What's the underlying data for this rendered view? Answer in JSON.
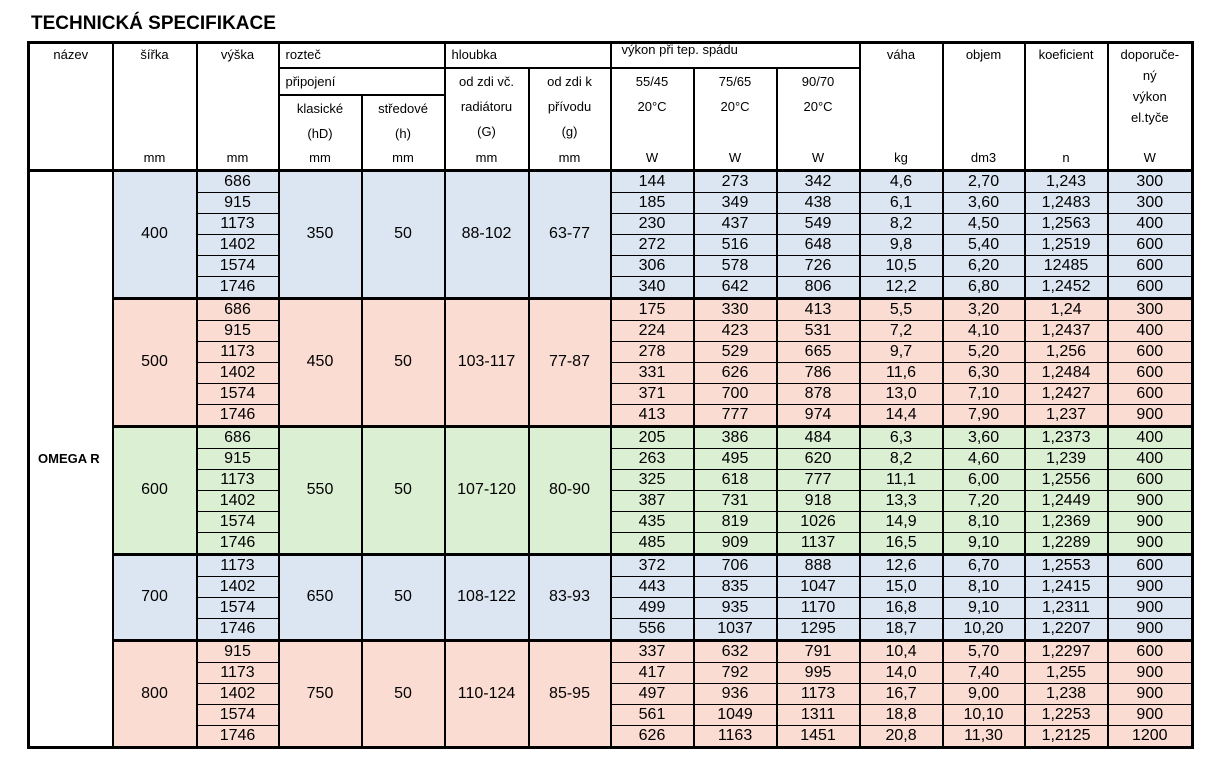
{
  "title": "TECHNICKÁ SPECIFIKACE",
  "header": {
    "nazev": "název",
    "sirka": "šířka",
    "vyska": "výška",
    "roztec": "rozteč",
    "pripojeni": "připojení",
    "klasicke": [
      "klasické",
      "(hD)"
    ],
    "stredove": [
      "středové",
      "(h)"
    ],
    "hloubka": "hloubka",
    "od_zdi_G": [
      "od zdi  vč.",
      "radiátoru",
      "(G)"
    ],
    "od_zdi_g": [
      "od zdi  k",
      "přívodu",
      "(g)"
    ],
    "vykon": "výkon při tep. spádu",
    "spad": [
      [
        "55/45",
        "20°C"
      ],
      [
        "75/65",
        "20°C"
      ],
      [
        "90/70",
        "20°C"
      ]
    ],
    "vaha": "váha",
    "objem": "objem",
    "koeficient": "koeficient",
    "doporuceny": [
      "doporuče-",
      "ný",
      "výkon",
      "el.tyče"
    ],
    "units": [
      "mm",
      "mm",
      "mm",
      "mm",
      "mm",
      "mm",
      "W",
      "W",
      "W",
      "kg",
      "dm3",
      "n",
      "W"
    ]
  },
  "table": {
    "model": "OMEGA R",
    "groups": [
      {
        "sirka": "400",
        "klasicke": "350",
        "stredove": "50",
        "G": "88-102",
        "g": "63-77",
        "color": "#dce6f2",
        "rows": [
          [
            "686",
            "144",
            "273",
            "342",
            "4,6",
            "2,70",
            "1,243",
            "300"
          ],
          [
            "915",
            "185",
            "349",
            "438",
            "6,1",
            "3,60",
            "1,2483",
            "300"
          ],
          [
            "1173",
            "230",
            "437",
            "549",
            "8,2",
            "4,50",
            "1,2563",
            "400"
          ],
          [
            "1402",
            "272",
            "516",
            "648",
            "9,8",
            "5,40",
            "1,2519",
            "600"
          ],
          [
            "1574",
            "306",
            "578",
            "726",
            "10,5",
            "6,20",
            "12485",
            "600"
          ],
          [
            "1746",
            "340",
            "642",
            "806",
            "12,2",
            "6,80",
            "1,2452",
            "600"
          ]
        ]
      },
      {
        "sirka": "500",
        "klasicke": "450",
        "stredove": "50",
        "G": "103-117",
        "g": "77-87",
        "color": "#fadcd2",
        "rows": [
          [
            "686",
            "175",
            "330",
            "413",
            "5,5",
            "3,20",
            "1,24",
            "300"
          ],
          [
            "915",
            "224",
            "423",
            "531",
            "7,2",
            "4,10",
            "1,2437",
            "400"
          ],
          [
            "1173",
            "278",
            "529",
            "665",
            "9,7",
            "5,20",
            "1,256",
            "600"
          ],
          [
            "1402",
            "331",
            "626",
            "786",
            "11,6",
            "6,30",
            "1,2484",
            "600"
          ],
          [
            "1574",
            "371",
            "700",
            "878",
            "13,0",
            "7,10",
            "1,2427",
            "600"
          ],
          [
            "1746",
            "413",
            "777",
            "974",
            "14,4",
            "7,90",
            "1,237",
            "900"
          ]
        ]
      },
      {
        "sirka": "600",
        "klasicke": "550",
        "stredove": "50",
        "G": "107-120",
        "g": "80-90",
        "color": "#dbefd3",
        "rows": [
          [
            "686",
            "205",
            "386",
            "484",
            "6,3",
            "3,60",
            "1,2373",
            "400"
          ],
          [
            "915",
            "263",
            "495",
            "620",
            "8,2",
            "4,60",
            "1,239",
            "400"
          ],
          [
            "1173",
            "325",
            "618",
            "777",
            "11,1",
            "6,00",
            "1,2556",
            "600"
          ],
          [
            "1402",
            "387",
            "731",
            "918",
            "13,3",
            "7,20",
            "1,2449",
            "900"
          ],
          [
            "1574",
            "435",
            "819",
            "1026",
            "14,9",
            "8,10",
            "1,2369",
            "900"
          ],
          [
            "1746",
            "485",
            "909",
            "1137",
            "16,5",
            "9,10",
            "1,2289",
            "900"
          ]
        ]
      },
      {
        "sirka": "700",
        "klasicke": "650",
        "stredove": "50",
        "G": "108-122",
        "g": "83-93",
        "color": "#dce6f2",
        "rows": [
          [
            "1173",
            "372",
            "706",
            "888",
            "12,6",
            "6,70",
            "1,2553",
            "600"
          ],
          [
            "1402",
            "443",
            "835",
            "1047",
            "15,0",
            "8,10",
            "1,2415",
            "900"
          ],
          [
            "1574",
            "499",
            "935",
            "1170",
            "16,8",
            "9,10",
            "1,2311",
            "900"
          ],
          [
            "1746",
            "556",
            "1037",
            "1295",
            "18,7",
            "10,20",
            "1,2207",
            "900"
          ]
        ]
      },
      {
        "sirka": "800",
        "klasicke": "750",
        "stredove": "50",
        "G": "110-124",
        "g": "85-95",
        "color": "#fadcd2",
        "rows": [
          [
            "915",
            "337",
            "632",
            "791",
            "10,4",
            "5,70",
            "1,2297",
            "600"
          ],
          [
            "1173",
            "417",
            "792",
            "995",
            "14,0",
            "7,40",
            "1,255",
            "900"
          ],
          [
            "1402",
            "497",
            "936",
            "1173",
            "16,7",
            "9,00",
            "1,238",
            "900"
          ],
          [
            "1574",
            "561",
            "1049",
            "1311",
            "18,8",
            "10,10",
            "1,2253",
            "900"
          ],
          [
            "1746",
            "626",
            "1163",
            "1451",
            "20,8",
            "11,30",
            "1,2125",
            "1200"
          ]
        ]
      }
    ]
  }
}
